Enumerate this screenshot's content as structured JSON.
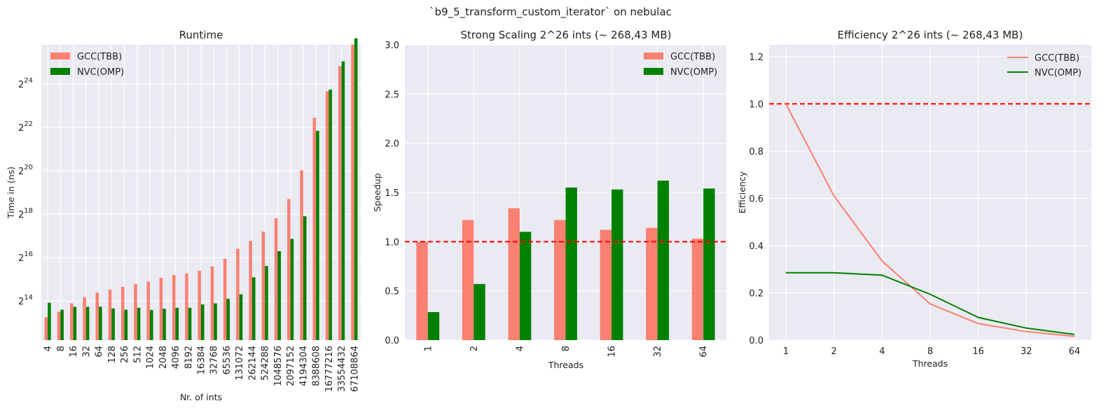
{
  "figure": {
    "suptitle": "`b9_5_transform_custom_iterator` on nebulac"
  },
  "colors": {
    "gcc": "#fa8072",
    "nvc": "#008000",
    "reference": "#ff0000",
    "panel_background": "#eaeaf2"
  },
  "chart_data": [
    {
      "type": "bar",
      "title": "Runtime",
      "xlabel": "Nr. of ints",
      "ylabel": "Time in (ns)",
      "y_scale": "log2",
      "ylim_log2": [
        12.2,
        25.8
      ],
      "y_ticks": [
        {
          "base": "2",
          "exp": "14",
          "value_log2": 14
        },
        {
          "base": "2",
          "exp": "16",
          "value_log2": 16
        },
        {
          "base": "2",
          "exp": "18",
          "value_log2": 18
        },
        {
          "base": "2",
          "exp": "20",
          "value_log2": 20
        },
        {
          "base": "2",
          "exp": "22",
          "value_log2": 22
        },
        {
          "base": "2",
          "exp": "24",
          "value_log2": 24
        }
      ],
      "legend_position": "upper-left",
      "categories": [
        "4",
        "8",
        "16",
        "32",
        "64",
        "128",
        "256",
        "512",
        "1024",
        "2048",
        "4096",
        "8192",
        "16384",
        "32768",
        "65536",
        "131072",
        "262144",
        "524288",
        "1048576",
        "2097152",
        "4194304",
        "8388608",
        "16777216",
        "33554432",
        "67108864"
      ],
      "series": [
        {
          "name": "GCC(TBB)",
          "color_key": "gcc",
          "values": [
            9800,
            11600,
            15200,
            18600,
            21500,
            23600,
            25800,
            28200,
            30400,
            34500,
            37500,
            39500,
            43000,
            49500,
            63000,
            87000,
            112000,
            150000,
            230000,
            425000,
            1060000,
            5700000,
            13200000,
            29400000,
            59000000
          ]
        },
        {
          "name": "NVC(OMP)",
          "color_key": "nvc",
          "values": [
            15500,
            12400,
            13600,
            13600,
            13700,
            12900,
            12400,
            13200,
            12300,
            12800,
            13200,
            13200,
            14700,
            15200,
            17600,
            20300,
            35000,
            50000,
            80500,
            119000,
            245000,
            3750000,
            14000000,
            34500000,
            72000000
          ]
        }
      ]
    },
    {
      "type": "bar",
      "title": "Strong Scaling 2^26 ints (~ 268,43 MB)",
      "xlabel": "Threads",
      "ylabel": "Speedup",
      "ylim": [
        0,
        3.0
      ],
      "y_ticks": [
        "0.0",
        "0.5",
        "1.0",
        "1.5",
        "2.0",
        "2.5",
        "3.0"
      ],
      "reference_line": 1.0,
      "legend_position": "upper-right",
      "categories": [
        "1",
        "2",
        "4",
        "8",
        "16",
        "32",
        "64"
      ],
      "series": [
        {
          "name": "GCC(TBB)",
          "color_key": "gcc",
          "values": [
            1.0,
            1.22,
            1.34,
            1.22,
            1.12,
            1.14,
            1.03
          ]
        },
        {
          "name": "NVC(OMP)",
          "color_key": "nvc",
          "values": [
            0.285,
            0.57,
            1.1,
            1.55,
            1.53,
            1.62,
            1.54
          ]
        }
      ]
    },
    {
      "type": "line",
      "title": "Efficiency 2^26 ints (~ 268,43 MB)",
      "xlabel": "Threads",
      "ylabel": "Efficiency",
      "x_scale": "log2",
      "ylim": [
        0,
        1.25
      ],
      "y_ticks": [
        "0.0",
        "0.2",
        "0.4",
        "0.6",
        "0.8",
        "1.0",
        "1.2"
      ],
      "x": [
        "1",
        "2",
        "4",
        "8",
        "16",
        "32",
        "64"
      ],
      "reference_line": 1.0,
      "legend_position": "upper-right",
      "series": [
        {
          "name": "GCC(TBB)",
          "color_key": "gcc",
          "values": [
            1.0,
            0.61,
            0.335,
            0.153,
            0.07,
            0.036,
            0.016
          ]
        },
        {
          "name": "NVC(OMP)",
          "color_key": "nvc",
          "values": [
            0.285,
            0.285,
            0.275,
            0.194,
            0.096,
            0.051,
            0.024
          ]
        }
      ]
    }
  ]
}
